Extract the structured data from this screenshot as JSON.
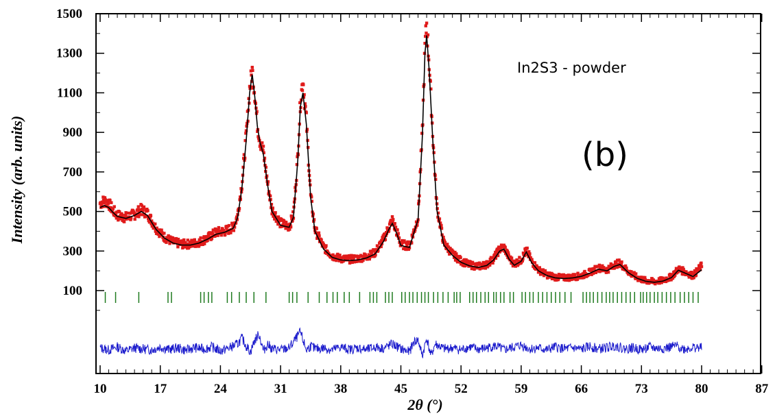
{
  "chart_data": {
    "type": "scatter",
    "title": "",
    "xlabel": "2θ (°)",
    "ylabel": "Intensity (arb. units)",
    "xlim": [
      10,
      87
    ],
    "ylim": [
      -270,
      1500
    ],
    "x_ticks": [
      "10",
      "17",
      "24",
      "31",
      "38",
      "45",
      "52",
      "59",
      "66",
      "73",
      "80",
      "87"
    ],
    "y_ticks": [
      "100",
      "300",
      "500",
      "700",
      "900",
      "1100",
      "1300",
      "1500"
    ],
    "annotations": {
      "sample": "In2S3 - powder",
      "panel": "(b)"
    },
    "grid": false,
    "legend": "none",
    "colors": {
      "observed": "#e01b1b",
      "calculated": "#000000",
      "bragg": "#1e7a1e",
      "difference": "#1a1acc"
    },
    "series": [
      {
        "role": "observed",
        "style": "markers",
        "x": [
          10.0,
          10.5,
          11.0,
          11.5,
          12.0,
          13.0,
          14.0,
          14.8,
          15.5,
          16.5,
          17.5,
          18.5,
          19.5,
          20.5,
          21.5,
          22.5,
          23.5,
          24.5,
          25.5,
          26.0,
          26.5,
          27.0,
          27.4,
          27.7,
          28.0,
          28.3,
          28.6,
          29.0,
          29.5,
          30.0,
          31.0,
          32.0,
          32.5,
          33.0,
          33.3,
          33.6,
          34.0,
          34.5,
          35.0,
          36.0,
          37.0,
          38.0,
          39.0,
          40.0,
          41.0,
          42.0,
          43.0,
          43.6,
          44.0,
          44.5,
          45.0,
          46.0,
          47.0,
          47.5,
          47.8,
          48.0,
          48.3,
          48.7,
          49.2,
          50.0,
          51.0,
          52.0,
          53.0,
          54.0,
          55.0,
          55.8,
          56.5,
          57.0,
          57.6,
          58.2,
          59.0,
          59.6,
          60.2,
          61.0,
          62.0,
          63.0,
          64.0,
          65.0,
          66.0,
          67.0,
          68.0,
          69.0,
          69.8,
          70.5,
          71.5,
          72.5,
          73.5,
          74.5,
          75.5,
          76.5,
          77.3,
          78.0,
          79.0,
          80.0
        ],
        "y": [
          540,
          555,
          540,
          505,
          480,
          470,
          485,
          510,
          490,
          415,
          370,
          345,
          335,
          335,
          345,
          365,
          395,
          400,
          420,
          480,
          640,
          880,
          1120,
          1210,
          1100,
          940,
          860,
          800,
          640,
          510,
          440,
          425,
          480,
          780,
          1050,
          1170,
          960,
          580,
          410,
          320,
          275,
          262,
          258,
          262,
          272,
          292,
          360,
          420,
          455,
          400,
          335,
          325,
          470,
          900,
          1330,
          1450,
          1250,
          900,
          520,
          340,
          285,
          250,
          230,
          222,
          232,
          262,
          310,
          320,
          265,
          235,
          255,
          305,
          250,
          205,
          180,
          168,
          165,
          168,
          175,
          192,
          215,
          205,
          230,
          240,
          195,
          165,
          150,
          145,
          152,
          170,
          210,
          195,
          175,
          225
        ]
      },
      {
        "role": "calculated",
        "style": "line",
        "x": [
          10.0,
          10.5,
          11.0,
          11.5,
          12.0,
          13.0,
          14.0,
          14.8,
          15.5,
          16.5,
          17.5,
          18.5,
          19.5,
          20.5,
          21.5,
          22.5,
          23.5,
          24.5,
          25.5,
          26.0,
          26.5,
          27.0,
          27.4,
          27.7,
          28.0,
          28.3,
          28.6,
          29.0,
          29.5,
          30.0,
          31.0,
          32.0,
          32.5,
          33.0,
          33.3,
          33.6,
          34.0,
          34.5,
          35.0,
          36.0,
          37.0,
          38.0,
          39.0,
          40.0,
          41.0,
          42.0,
          43.0,
          43.6,
          44.0,
          44.5,
          45.0,
          46.0,
          47.0,
          47.5,
          47.8,
          48.0,
          48.3,
          48.7,
          49.2,
          50.0,
          51.0,
          52.0,
          53.0,
          54.0,
          55.0,
          55.8,
          56.5,
          57.0,
          57.6,
          58.2,
          59.0,
          59.6,
          60.2,
          61.0,
          62.0,
          63.0,
          64.0,
          65.0,
          66.0,
          67.0,
          68.0,
          69.0,
          69.8,
          70.5,
          71.5,
          72.5,
          73.5,
          74.5,
          75.5,
          76.5,
          77.3,
          78.0,
          79.0,
          80.0
        ],
        "y": [
          520,
          530,
          520,
          495,
          475,
          465,
          480,
          500,
          480,
          410,
          365,
          340,
          330,
          330,
          340,
          360,
          385,
          395,
          415,
          470,
          620,
          860,
          1100,
          1195,
          1080,
          930,
          850,
          790,
          630,
          500,
          430,
          420,
          470,
          760,
          1030,
          1100,
          940,
          570,
          400,
          310,
          268,
          255,
          252,
          255,
          265,
          285,
          350,
          410,
          440,
          390,
          328,
          318,
          460,
          880,
          1300,
          1390,
          1210,
          870,
          505,
          330,
          278,
          243,
          225,
          217,
          227,
          255,
          300,
          310,
          258,
          228,
          248,
          295,
          243,
          200,
          176,
          164,
          161,
          164,
          172,
          188,
          208,
          200,
          222,
          232,
          190,
          162,
          147,
          142,
          148,
          166,
          203,
          190,
          171,
          205
        ]
      },
      {
        "role": "difference",
        "style": "line",
        "x": [
          10.0,
          11.0,
          12.0,
          13.0,
          14.0,
          15.0,
          16.0,
          17.0,
          18.0,
          19.0,
          20.0,
          21.0,
          22.0,
          23.0,
          24.0,
          25.0,
          26.0,
          26.5,
          27.0,
          27.5,
          28.0,
          28.5,
          29.0,
          29.5,
          30.0,
          31.0,
          32.0,
          32.5,
          33.0,
          33.3,
          33.6,
          34.0,
          34.5,
          35.0,
          36.0,
          37.0,
          38.0,
          39.0,
          40.0,
          41.0,
          42.0,
          43.0,
          44.0,
          45.0,
          46.0,
          46.5,
          47.0,
          47.5,
          48.0,
          48.5,
          49.0,
          50.0,
          51.0,
          52.0,
          53.0,
          54.0,
          55.0,
          56.0,
          57.0,
          58.0,
          59.0,
          60.0,
          61.0,
          62.0,
          63.0,
          64.0,
          65.0,
          66.0,
          67.0,
          68.0,
          69.0,
          70.0,
          71.0,
          72.0,
          73.0,
          74.0,
          75.0,
          76.0,
          77.0,
          78.0,
          79.0,
          80.0
        ],
        "y": [
          -190,
          -200,
          -185,
          -205,
          -190,
          -195,
          -200,
          -185,
          -198,
          -190,
          -202,
          -188,
          -196,
          -185,
          -205,
          -190,
          -170,
          -140,
          -180,
          -210,
          -150,
          -120,
          -205,
          -170,
          -195,
          -200,
          -190,
          -160,
          -130,
          -110,
          -150,
          -200,
          -180,
          -195,
          -190,
          -200,
          -185,
          -198,
          -190,
          -200,
          -186,
          -192,
          -170,
          -195,
          -210,
          -160,
          -150,
          -230,
          -140,
          -230,
          -170,
          -195,
          -190,
          -200,
          -185,
          -198,
          -190,
          -180,
          -200,
          -188,
          -176,
          -195,
          -190,
          -200,
          -185,
          -195,
          -190,
          -198,
          -182,
          -196,
          -188,
          -178,
          -195,
          -190,
          -198,
          -186,
          -194,
          -190,
          -180,
          -196,
          -188,
          -190
        ]
      }
    ],
    "bragg_positions": [
      10.6,
      11.8,
      14.5,
      17.9,
      18.3,
      21.7,
      22.1,
      22.6,
      23.0,
      24.8,
      25.3,
      26.2,
      27.0,
      27.9,
      29.3,
      32.0,
      32.4,
      32.9,
      34.2,
      35.5,
      36.4,
      37.1,
      37.6,
      38.4,
      39.0,
      40.2,
      41.4,
      41.8,
      42.2,
      43.2,
      43.6,
      44.0,
      45.1,
      45.5,
      46.0,
      46.4,
      46.9,
      47.4,
      47.8,
      48.2,
      48.8,
      49.3,
      49.9,
      50.5,
      51.2,
      51.5,
      51.9,
      53.0,
      53.4,
      53.8,
      54.3,
      54.8,
      55.2,
      55.8,
      56.1,
      56.6,
      57.0,
      57.7,
      58.1,
      59.1,
      59.5,
      60.0,
      60.4,
      61.0,
      61.5,
      62.0,
      62.5,
      63.0,
      63.5,
      64.1,
      64.8,
      66.2,
      66.6,
      67.0,
      67.4,
      67.9,
      68.4,
      68.9,
      69.3,
      69.7,
      70.2,
      70.7,
      71.2,
      71.7,
      72.2,
      72.9,
      73.2,
      73.6,
      74.0,
      74.5,
      74.9,
      75.4,
      75.9,
      76.4,
      76.9,
      77.5,
      78.0,
      78.5,
      79.0,
      79.6
    ]
  }
}
